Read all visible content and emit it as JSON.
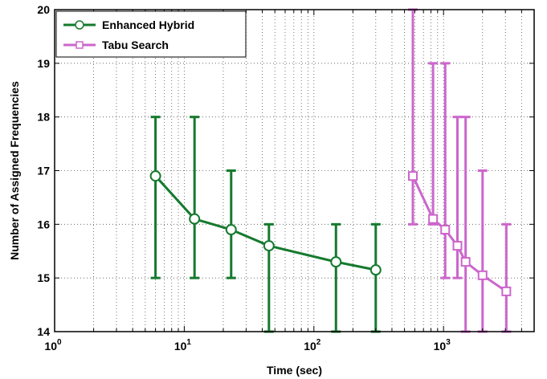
{
  "chart_data": {
    "type": "line",
    "xlabel": "Time (sec)",
    "ylabel": "Number of Assigned Frequencies",
    "xscale": "log",
    "xlim": [
      1,
      5000
    ],
    "ylim": [
      14,
      20
    ],
    "grid": true,
    "legend_position": "top-left",
    "x_ticks": [
      {
        "value": 1,
        "base": "10",
        "exp": "0"
      },
      {
        "value": 10,
        "base": "10",
        "exp": "1"
      },
      {
        "value": 100,
        "base": "10",
        "exp": "2"
      },
      {
        "value": 1000,
        "base": "10",
        "exp": "3"
      }
    ],
    "y_ticks": [
      {
        "value": 14,
        "label": "14"
      },
      {
        "value": 15,
        "label": "15"
      },
      {
        "value": 16,
        "label": "16"
      },
      {
        "value": 17,
        "label": "17"
      },
      {
        "value": 18,
        "label": "18"
      },
      {
        "value": 19,
        "label": "19"
      },
      {
        "value": 20,
        "label": "20"
      }
    ],
    "series": [
      {
        "name": "Enhanced Hybrid",
        "color": "#157a2e",
        "marker": "circle",
        "points": [
          {
            "x": 6,
            "y": 16.9,
            "lo": 15,
            "hi": 18
          },
          {
            "x": 12,
            "y": 16.1,
            "lo": 15,
            "hi": 18
          },
          {
            "x": 23,
            "y": 15.9,
            "lo": 15,
            "hi": 17
          },
          {
            "x": 45,
            "y": 15.6,
            "lo": 14,
            "hi": 16
          },
          {
            "x": 148,
            "y": 15.3,
            "lo": 14,
            "hi": 16
          },
          {
            "x": 300,
            "y": 15.15,
            "lo": 14,
            "hi": 16
          }
        ]
      },
      {
        "name": "Tabu Search",
        "color": "#cc66cc",
        "marker": "square",
        "points": [
          {
            "x": 580,
            "y": 16.9,
            "lo": 16,
            "hi": 20
          },
          {
            "x": 830,
            "y": 16.1,
            "lo": 16,
            "hi": 19
          },
          {
            "x": 1030,
            "y": 15.9,
            "lo": 15,
            "hi": 19
          },
          {
            "x": 1280,
            "y": 15.6,
            "lo": 15,
            "hi": 18
          },
          {
            "x": 1480,
            "y": 15.3,
            "lo": 14,
            "hi": 18
          },
          {
            "x": 2000,
            "y": 15.05,
            "lo": 14,
            "hi": 17
          },
          {
            "x": 3050,
            "y": 14.75,
            "lo": 14,
            "hi": 16
          }
        ]
      }
    ]
  }
}
